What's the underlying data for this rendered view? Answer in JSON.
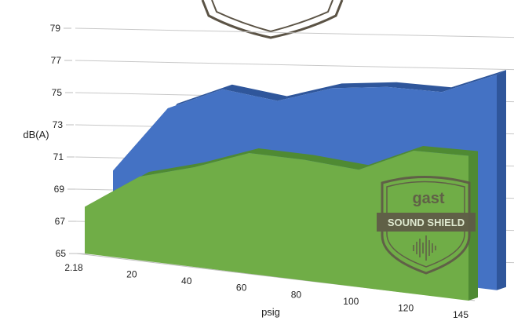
{
  "chart_data": {
    "type": "area",
    "view": "3d",
    "categories": [
      "2.18",
      "20",
      "40",
      "60",
      "80",
      "100",
      "120",
      "145"
    ],
    "x": [
      2.18,
      20,
      40,
      60,
      80,
      100,
      120,
      145
    ],
    "series": [
      {
        "color": "#4472c4",
        "values": [
          69.5,
          73.8,
          75.4,
          75.1,
          76.3,
          76.8,
          76.9,
          78.4
        ]
      },
      {
        "color": "#70ad47",
        "values": [
          67.9,
          70.2,
          71.2,
          72.5,
          72.5,
          72.3,
          73.9,
          74.0
        ]
      }
    ],
    "y_ticks": [
      65,
      67,
      69,
      71,
      73,
      75,
      77,
      79
    ],
    "ylim": [
      65,
      79
    ],
    "xlabel": "psig",
    "ylabel": "dB(A)",
    "grid": true,
    "legend": "none"
  },
  "badge": {
    "brand": "gast",
    "product": "SOUND SHIELD"
  }
}
